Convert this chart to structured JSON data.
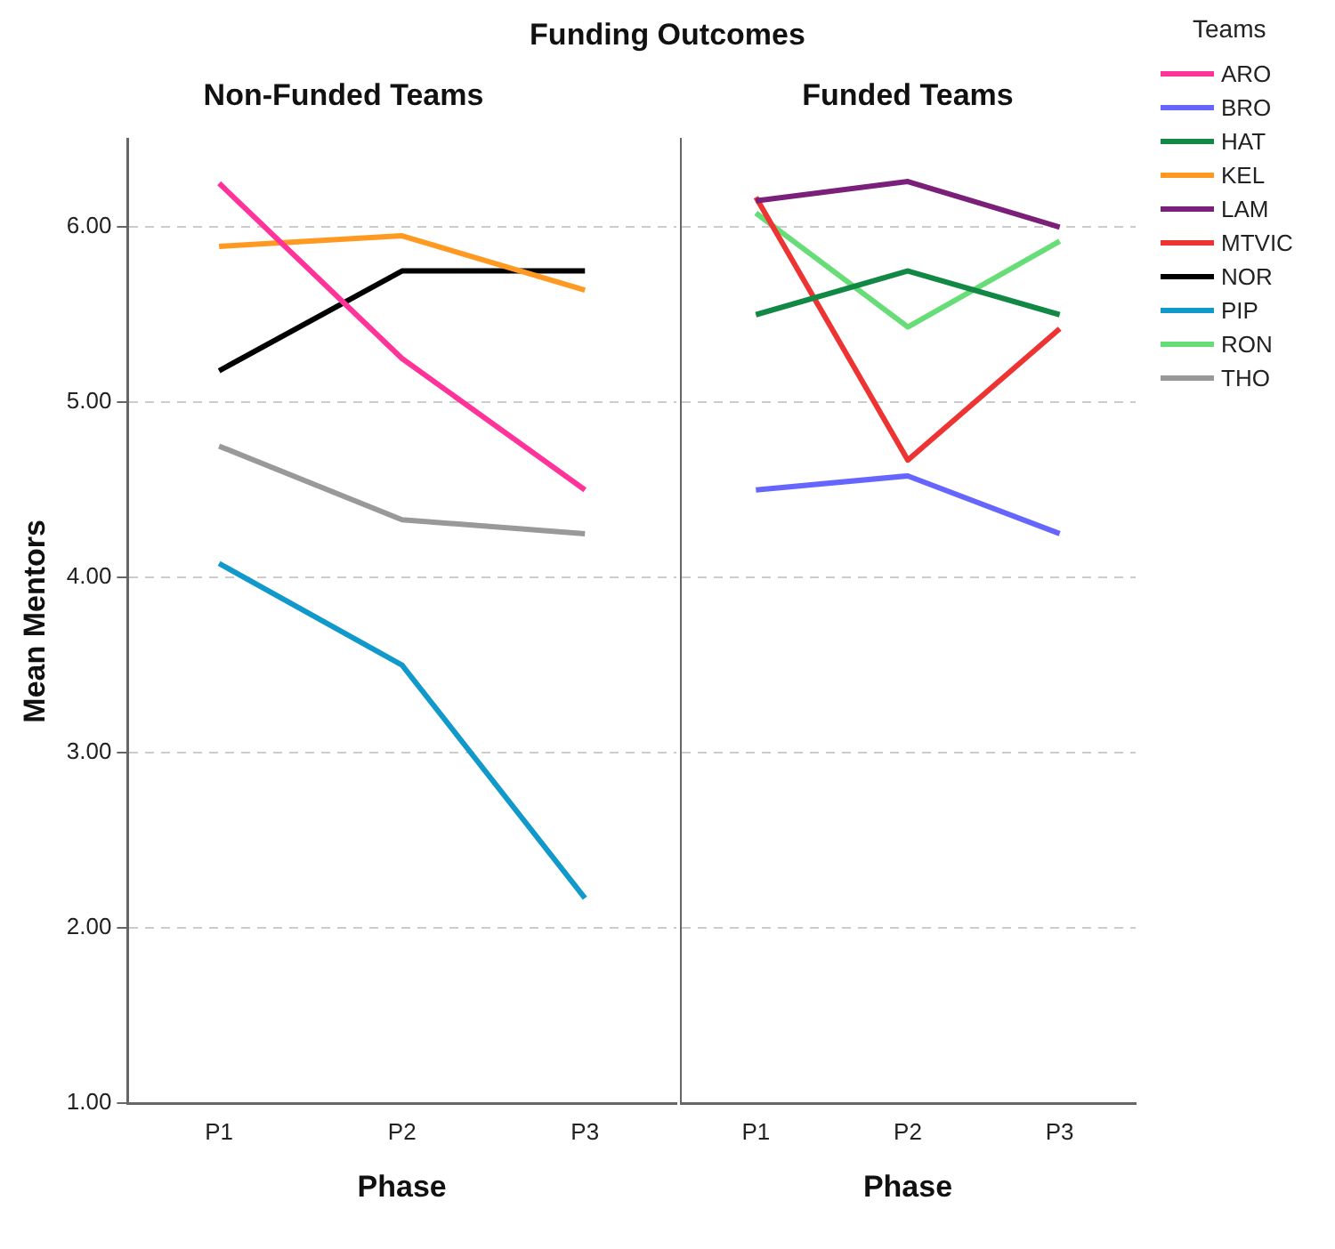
{
  "chart_data": [
    {
      "type": "line",
      "title": "Funding Outcomes",
      "subtitle": "Non-Funded Teams",
      "xlabel": "Phase",
      "ylabel": "Mean Mentors",
      "categories": [
        "P1",
        "P2",
        "P3"
      ],
      "ylim": [
        1,
        6.5
      ],
      "yticks": [
        {
          "value": 1,
          "label": "1.00"
        },
        {
          "value": 2,
          "label": "2.00"
        },
        {
          "value": 3,
          "label": "3.00"
        },
        {
          "value": 4,
          "label": "4.00"
        },
        {
          "value": 5,
          "label": "5.00"
        },
        {
          "value": 6,
          "label": "6.00"
        }
      ],
      "grid": "y",
      "legend": "right",
      "marker": "none",
      "line_style": "solid",
      "series": [
        {
          "name": "ARO",
          "color": "#ff3399",
          "values": [
            6.25,
            5.25,
            4.5
          ]
        },
        {
          "name": "KEL",
          "color": "#ff9922",
          "values": [
            5.89,
            5.95,
            5.64
          ]
        },
        {
          "name": "NOR",
          "color": "#000000",
          "values": [
            5.18,
            5.75,
            5.75
          ]
        },
        {
          "name": "PIP",
          "color": "#1199cc",
          "values": [
            4.08,
            3.5,
            2.17
          ]
        },
        {
          "name": "THO",
          "color": "#999999",
          "values": [
            4.75,
            4.33,
            4.25
          ]
        }
      ]
    },
    {
      "type": "line",
      "subtitle": "Funded Teams",
      "xlabel": "Phase",
      "categories": [
        "P1",
        "P2",
        "P3"
      ],
      "ylim": [
        1,
        6.5
      ],
      "yticks": [
        1,
        2,
        3,
        4,
        5,
        6
      ],
      "tick_labels": "x",
      "grid": "y",
      "legend": "right",
      "legend_title": "Teams",
      "marker": "none",
      "line_style": "solid",
      "series": [
        {
          "name": "BRO",
          "color": "#6666ff",
          "values": [
            4.5,
            4.58,
            4.25
          ]
        },
        {
          "name": "HAT",
          "color": "#118844",
          "values": [
            5.5,
            5.75,
            5.5
          ]
        },
        {
          "name": "LAM",
          "color": "#7a1f7a",
          "values": [
            6.15,
            6.26,
            6.0
          ]
        },
        {
          "name": "MTVIC",
          "color": "#ee3333",
          "values": [
            6.17,
            4.67,
            5.42
          ]
        },
        {
          "name": "RON",
          "color": "#66dd77",
          "values": [
            6.08,
            5.43,
            5.92
          ]
        }
      ]
    }
  ]
}
